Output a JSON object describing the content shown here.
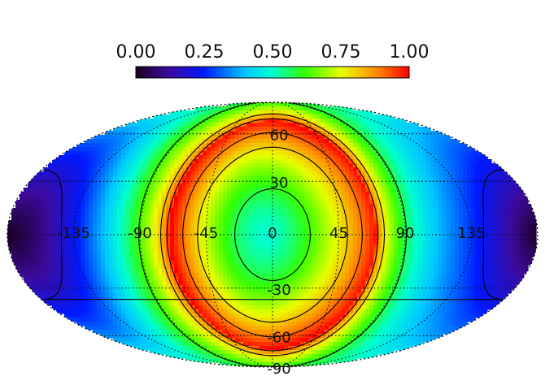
{
  "chart_data": {
    "type": "heatmap",
    "projection": "mollweide",
    "colormap": "rainbow",
    "colorbar": {
      "min": 0,
      "max": 1,
      "tick_labels": [
        "0.00",
        "0.25",
        "0.50",
        "0.75",
        "1.00"
      ]
    },
    "longitude_labels": [
      "-135",
      "-90",
      "-45",
      "0",
      "45",
      "90",
      "135"
    ],
    "latitude_labels": [
      "60",
      "30",
      "0",
      "-30",
      "-60",
      "-90"
    ],
    "longitude_lines_deg": [
      -135,
      -90,
      -45,
      0,
      45,
      90,
      135
    ],
    "latitude_lines_deg": [
      -60,
      -30,
      0,
      30,
      60
    ],
    "contour_levels": [
      0.2,
      0.6,
      0.8,
      0.9
    ],
    "field": {
      "description_values": {
        "center_value": 0.5,
        "peak_ring_value": 1.0,
        "peak_ring_angular_distance_deg": 70,
        "antipode_value": 0.0
      }
    },
    "grid": true
  }
}
